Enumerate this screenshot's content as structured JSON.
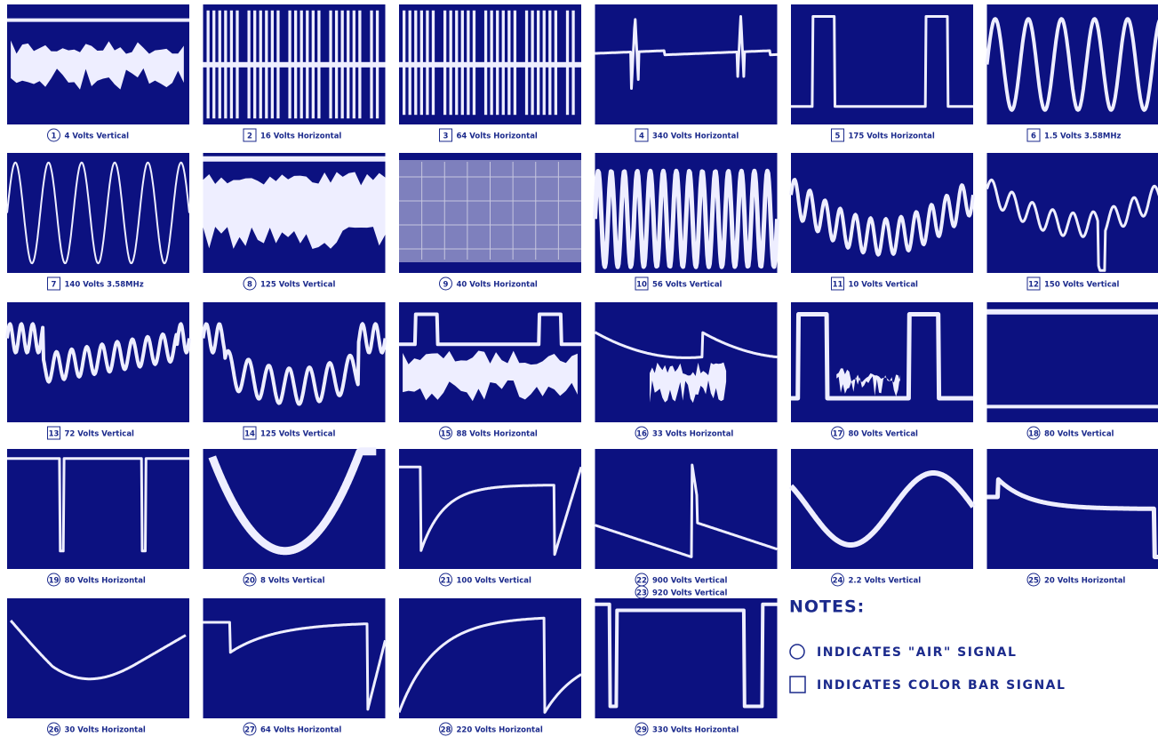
{
  "panels": [
    {
      "captions": [
        {
          "number": "1",
          "marker": "circle",
          "label": "4 Volts Vertical"
        }
      ]
    },
    {
      "captions": [
        {
          "number": "2",
          "marker": "square",
          "label": "16 Volts Horizontal"
        }
      ]
    },
    {
      "captions": [
        {
          "number": "3",
          "marker": "square",
          "label": "64 Volts Horizontal"
        }
      ]
    },
    {
      "captions": [
        {
          "number": "4",
          "marker": "square",
          "label": "340 Volts Horizontal"
        }
      ]
    },
    {
      "captions": [
        {
          "number": "5",
          "marker": "square",
          "label": "175 Volts Horizontal"
        }
      ]
    },
    {
      "captions": [
        {
          "number": "6",
          "marker": "square",
          "label": "1.5 Volts 3.58MHz"
        }
      ]
    },
    {
      "captions": [
        {
          "number": "7",
          "marker": "square",
          "label": "140 Volts 3.58MHz"
        }
      ]
    },
    {
      "captions": [
        {
          "number": "8",
          "marker": "circle",
          "label": "125 Volts Vertical"
        }
      ]
    },
    {
      "captions": [
        {
          "number": "9",
          "marker": "circle",
          "label": "40 Volts Horizontal"
        }
      ]
    },
    {
      "captions": [
        {
          "number": "10",
          "marker": "square",
          "label": "56 Volts Vertical"
        }
      ]
    },
    {
      "captions": [
        {
          "number": "11",
          "marker": "square",
          "label": "10 Volts Vertical"
        }
      ]
    },
    {
      "captions": [
        {
          "number": "12",
          "marker": "square",
          "label": "150 Volts Vertical"
        }
      ]
    },
    {
      "captions": [
        {
          "number": "13",
          "marker": "square",
          "label": "72 Volts Vertical"
        }
      ]
    },
    {
      "captions": [
        {
          "number": "14",
          "marker": "square",
          "label": "125 Volts Vertical"
        }
      ]
    },
    {
      "captions": [
        {
          "number": "15",
          "marker": "circle",
          "label": "88 Volts Horizontal"
        }
      ]
    },
    {
      "captions": [
        {
          "number": "16",
          "marker": "circle",
          "label": "33 Volts Horizontal"
        }
      ]
    },
    {
      "captions": [
        {
          "number": "17",
          "marker": "circle",
          "label": "80 Volts Vertical"
        }
      ]
    },
    {
      "captions": [
        {
          "number": "18",
          "marker": "circle",
          "label": "80 Volts Vertical"
        }
      ]
    },
    {
      "captions": [
        {
          "number": "19",
          "marker": "circle",
          "label": "80 Volts Horizontal"
        }
      ]
    },
    {
      "captions": [
        {
          "number": "20",
          "marker": "circle",
          "label": "8 Volts Vertical"
        }
      ]
    },
    {
      "captions": [
        {
          "number": "21",
          "marker": "circle",
          "label": "100 Volts Vertical"
        }
      ]
    },
    {
      "captions": [
        {
          "number": "22",
          "marker": "circle",
          "label": "900 Volts Vertical"
        },
        {
          "number": "23",
          "marker": "circle",
          "label": "920 Volts Vertical"
        }
      ]
    },
    {
      "captions": [
        {
          "number": "24",
          "marker": "circle",
          "label": "2.2 Volts Vertical"
        }
      ]
    },
    {
      "captions": [
        {
          "number": "25",
          "marker": "circle",
          "label": "20 Volts Horizontal"
        }
      ]
    },
    {
      "captions": [
        {
          "number": "26",
          "marker": "circle",
          "label": "30 Volts Horizontal"
        }
      ]
    },
    {
      "captions": [
        {
          "number": "27",
          "marker": "circle",
          "label": "64 Volts Horizontal"
        }
      ]
    },
    {
      "captions": [
        {
          "number": "28",
          "marker": "circle",
          "label": "220 Volts Horizontal"
        }
      ]
    },
    {
      "captions": [
        {
          "number": "29",
          "marker": "circle",
          "label": "330 Volts Horizontal"
        }
      ]
    }
  ],
  "notes": {
    "title": "NOTES:",
    "items": [
      {
        "marker": "circle",
        "text": "INDICATES \"AIR\" SIGNAL"
      },
      {
        "marker": "square",
        "text": "INDICATES COLOR BAR SIGNAL"
      }
    ]
  }
}
